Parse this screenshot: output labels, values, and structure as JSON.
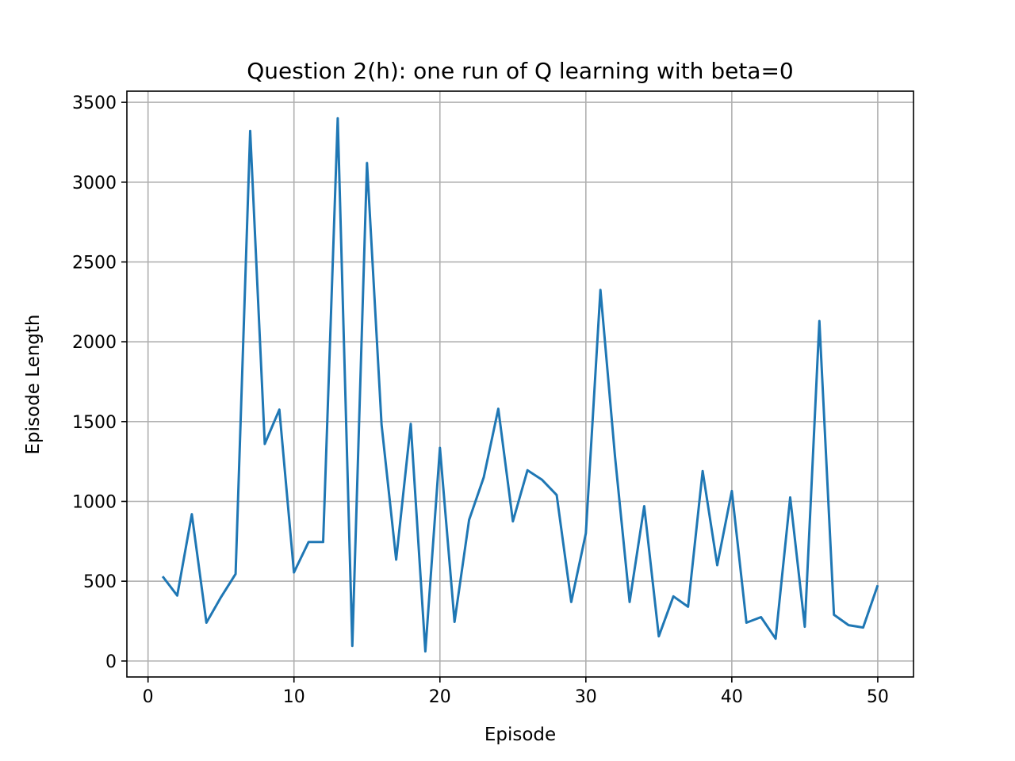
{
  "chart_data": {
    "type": "line",
    "title": "Question 2(h): one run of Q learning with beta=0",
    "xlabel": "Episode",
    "ylabel": "Episode Length",
    "xlim": [
      -1.45,
      52.45
    ],
    "ylim": [
      -100,
      3570
    ],
    "xticks": [
      0,
      10,
      20,
      30,
      40,
      50
    ],
    "yticks": [
      0,
      500,
      1000,
      1500,
      2000,
      2500,
      3000,
      3500
    ],
    "grid": true,
    "series": [
      {
        "color": "#1f77b4",
        "x": [
          1,
          2,
          3,
          4,
          5,
          6,
          7,
          8,
          9,
          10,
          11,
          12,
          13,
          14,
          15,
          16,
          17,
          18,
          19,
          20,
          21,
          22,
          23,
          24,
          25,
          26,
          27,
          28,
          29,
          30,
          31,
          32,
          33,
          34,
          35,
          36,
          37,
          38,
          39,
          40,
          41,
          42,
          43,
          44,
          45,
          46,
          47,
          48,
          49,
          50
        ],
        "y": [
          530,
          410,
          920,
          240,
          400,
          545,
          3320,
          1360,
          1575,
          555,
          745,
          745,
          3400,
          95,
          3120,
          1480,
          635,
          1485,
          60,
          1335,
          245,
          885,
          1150,
          1580,
          875,
          1195,
          1135,
          1040,
          370,
          800,
          2325,
          1280,
          370,
          970,
          155,
          405,
          340,
          1190,
          600,
          1065,
          240,
          275,
          140,
          1025,
          215,
          2130,
          290,
          225,
          210,
          475
        ]
      }
    ]
  }
}
